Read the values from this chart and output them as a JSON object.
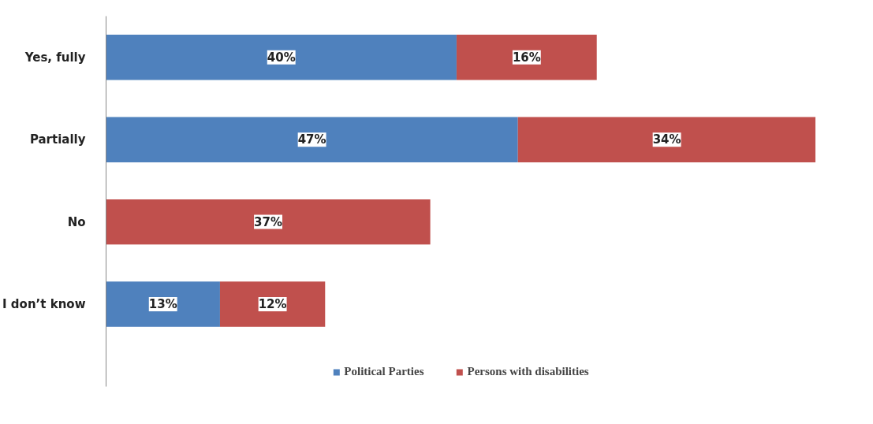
{
  "chart_data": {
    "type": "bar",
    "orientation": "horizontal",
    "stacked": true,
    "categories": [
      "Yes, fully",
      "Partially",
      "No",
      "I don’t know"
    ],
    "series": [
      {
        "name": "Political Parties",
        "color": "#4f81bd",
        "values": [
          40,
          47,
          null,
          13
        ],
        "value_labels": [
          "40%",
          "47%",
          null,
          "13%"
        ]
      },
      {
        "name": "Persons with disabilities",
        "color": "#c0504d",
        "values": [
          16,
          34,
          37,
          12
        ],
        "value_labels": [
          "16%",
          "34%",
          "37%",
          "12%"
        ]
      }
    ],
    "grid": false,
    "legend": "bottom"
  }
}
